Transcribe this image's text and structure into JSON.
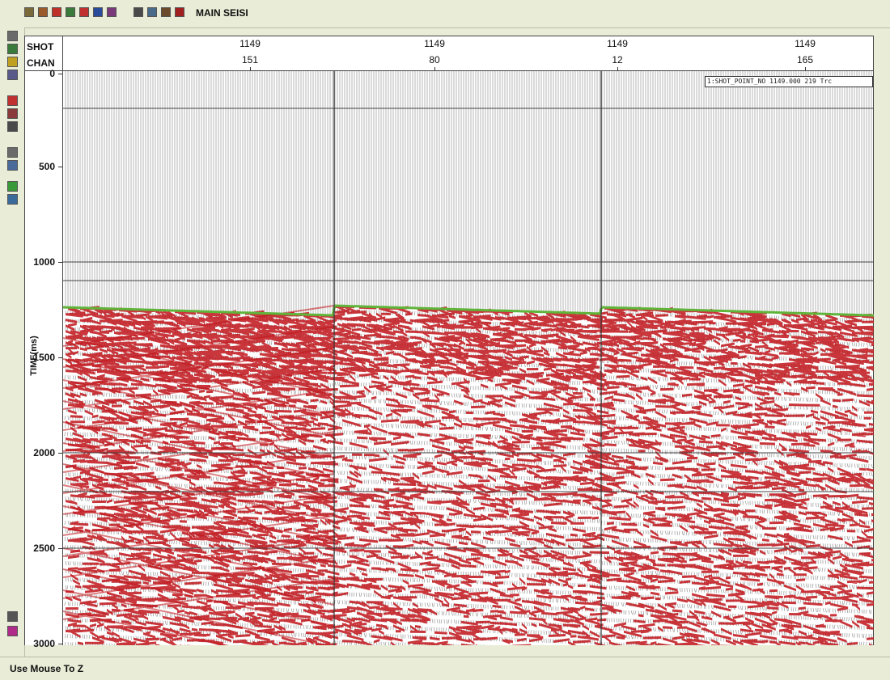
{
  "window": {
    "title": "MAIN SEISI"
  },
  "toolbar": {
    "icons": [
      {
        "name": "trace-icon",
        "color": "#7a6a3a"
      },
      {
        "name": "wiggle-icon",
        "color": "#9a5a2a"
      },
      {
        "name": "color-display-icon",
        "color": "#c0302a"
      },
      {
        "name": "chart-icon",
        "color": "#3a7a3a"
      },
      {
        "name": "flag-icon",
        "color": "#c03030"
      },
      {
        "name": "image-icon",
        "color": "#2a4a9a"
      },
      {
        "name": "grid-icon",
        "color": "#7a3a7a"
      },
      {
        "name": "filter-icon",
        "color": "#4a4a4a"
      },
      {
        "name": "process-icon",
        "color": "#4a6a8a"
      },
      {
        "name": "pick-icon",
        "color": "#6a4a2a"
      },
      {
        "name": "stop-icon",
        "color": "#a02020"
      }
    ]
  },
  "sidebar": {
    "icons": [
      {
        "name": "zoom-icon",
        "color": "#6a6a6a"
      },
      {
        "name": "pan-icon",
        "color": "#3a7a3a"
      },
      {
        "name": "palette-icon",
        "color": "#c0a020"
      },
      {
        "name": "scale-icon",
        "color": "#5a5a8a"
      },
      {
        "name": "mute-icon",
        "color": "#c03030"
      },
      {
        "name": "gain-icon",
        "color": "#8a3a3a"
      },
      {
        "name": "traces-icon",
        "color": "#4a4a4a"
      },
      {
        "name": "header-icon",
        "color": "#6a6a6a"
      },
      {
        "name": "help-icon",
        "color": "#4a6a9a"
      },
      {
        "name": "green-toggle-icon",
        "color": "#3a9a3a"
      },
      {
        "name": "settings-icon",
        "color": "#3a6a9a"
      },
      {
        "name": "pointer-icon",
        "color": "#555555"
      },
      {
        "name": "close-icon",
        "color": "#b02a8a"
      }
    ]
  },
  "header": {
    "shot_label": "SHOT",
    "chan_label": "CHAN",
    "columns": [
      {
        "shot": "1149",
        "chan": "151"
      },
      {
        "shot": "1149",
        "chan": "80"
      },
      {
        "shot": "1149",
        "chan": "12"
      },
      {
        "shot": "1149",
        "chan": "165"
      }
    ]
  },
  "axis": {
    "label": "TIME(ms)",
    "ticks": [
      "0",
      "500",
      "1000",
      "1500",
      "2000",
      "2500",
      "3000"
    ]
  },
  "trace_info": "1:SHOT_POINT_NO 1149.000 219 Trc",
  "status": {
    "text": "Use Mouse To Z"
  },
  "colors": {
    "fill": "#c0141a",
    "first_break": "#5fb43a",
    "trace": "#222222"
  }
}
